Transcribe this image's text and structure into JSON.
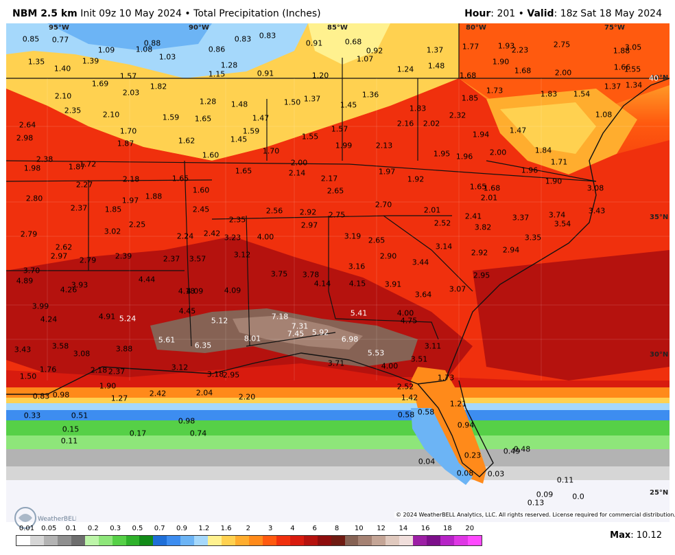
{
  "header": {
    "model": "NBM 2.5 km",
    "init": "Init 09z 10 May 2024",
    "sep": "•",
    "product": "Total Precipitation (Inches)",
    "hour_label": "Hour",
    "hour_value": "201",
    "valid_label": "Valid",
    "valid_value": "18z Sat 18 May 2024"
  },
  "map": {
    "lon_labels": [
      "95°W",
      "90°W",
      "85°W",
      "80°W",
      "75°W"
    ],
    "lat_labels": [
      "40°N",
      "35°N",
      "30°N",
      "25°N"
    ],
    "values": [
      [
        "0.85",
        45,
        57
      ],
      [
        "0.77",
        88,
        58
      ],
      [
        "1.09",
        155,
        73
      ],
      [
        "1.08",
        210,
        72
      ],
      [
        "0.88",
        222,
        63
      ],
      [
        "1.03",
        244,
        83
      ],
      [
        "0.86",
        316,
        72
      ],
      [
        "0.83",
        354,
        57
      ],
      [
        "0.83",
        390,
        52
      ],
      [
        "0.91",
        458,
        63
      ],
      [
        "0.68",
        515,
        61
      ],
      [
        "0.92",
        546,
        74
      ],
      [
        "1.07",
        532,
        86
      ],
      [
        "1.37",
        634,
        73
      ],
      [
        "1.48",
        636,
        96
      ],
      [
        "1.24",
        591,
        101
      ],
      [
        "1.20",
        467,
        110
      ],
      [
        "1.28",
        334,
        95
      ],
      [
        "1.15",
        316,
        108
      ],
      [
        "0.91",
        387,
        107
      ],
      [
        "1.77",
        686,
        68
      ],
      [
        "1.93",
        738,
        67
      ],
      [
        "2.23",
        758,
        73
      ],
      [
        "2.75",
        819,
        65
      ],
      [
        "1.88",
        906,
        74
      ],
      [
        "3.05",
        923,
        69
      ],
      [
        "1.90",
        730,
        90
      ],
      [
        "1.68",
        762,
        103
      ],
      [
        "2.00",
        821,
        106
      ],
      [
        "1.68",
        682,
        110
      ],
      [
        "1.66",
        907,
        98
      ],
      [
        "1.55",
        922,
        101
      ],
      [
        "40",
        953,
        114
      ],
      [
        "1.35",
        53,
        90
      ],
      [
        "1.40",
        91,
        100
      ],
      [
        "1.39",
        132,
        89
      ],
      [
        "1.69",
        146,
        122
      ],
      [
        "1.57",
        187,
        111
      ],
      [
        "2.03",
        191,
        135
      ],
      [
        "1.82",
        231,
        126
      ],
      [
        "1.28",
        303,
        148
      ],
      [
        "1.48",
        349,
        152
      ],
      [
        "1.50",
        426,
        149
      ],
      [
        "1.37",
        455,
        144
      ],
      [
        "1.36",
        540,
        138
      ],
      [
        "1.45",
        508,
        153
      ],
      [
        "1.37",
        893,
        126
      ],
      [
        "1.34",
        924,
        124
      ],
      [
        "1.54",
        848,
        137
      ],
      [
        "1.08",
        880,
        167
      ],
      [
        "1.73",
        721,
        132
      ],
      [
        "1.83",
        800,
        137
      ],
      [
        "1.85",
        685,
        143
      ],
      [
        "2.10",
        92,
        140
      ],
      [
        "2.35",
        106,
        161
      ],
      [
        "2.10",
        162,
        167
      ],
      [
        "1.59",
        249,
        171
      ],
      [
        "1.65",
        296,
        173
      ],
      [
        "1.47",
        380,
        172
      ],
      [
        "1.83",
        609,
        158
      ],
      [
        "2.32",
        667,
        168
      ],
      [
        "2.16",
        591,
        180
      ],
      [
        "2.02",
        629,
        180
      ],
      [
        "1.57",
        495,
        188
      ],
      [
        "1.47",
        755,
        190
      ],
      [
        "1.94",
        701,
        196
      ],
      [
        "2.64",
        40,
        182
      ],
      [
        "2.98",
        36,
        201
      ],
      [
        "1.70",
        187,
        191
      ],
      [
        "1.87",
        183,
        209
      ],
      [
        "1.62",
        272,
        205
      ],
      [
        "1.59",
        366,
        191
      ],
      [
        "1.45",
        348,
        203
      ],
      [
        "1.55",
        452,
        199
      ],
      [
        "1.99",
        501,
        212
      ],
      [
        "2.13",
        560,
        212
      ],
      [
        "1.70",
        395,
        220
      ],
      [
        "1.95",
        644,
        224
      ],
      [
        "1.96",
        677,
        228
      ],
      [
        "2.00",
        726,
        222
      ],
      [
        "1.84",
        792,
        219
      ],
      [
        "2.38",
        65,
        232
      ],
      [
        "1.72",
        128,
        239
      ],
      [
        "1.87",
        112,
        243
      ],
      [
        "1.98",
        47,
        245
      ],
      [
        "1.60",
        307,
        226
      ],
      [
        "1.65",
        355,
        249
      ],
      [
        "2.00",
        436,
        237
      ],
      [
        "2.14",
        433,
        252
      ],
      [
        "2.17",
        480,
        260
      ],
      [
        "1.97",
        564,
        250
      ],
      [
        "1.71",
        815,
        236
      ],
      [
        "1.96",
        772,
        248
      ],
      [
        "2.18",
        191,
        261
      ],
      [
        "1.65",
        263,
        260
      ],
      [
        "1.60",
        293,
        277
      ],
      [
        "2.65",
        489,
        278
      ],
      [
        "1.92",
        606,
        261
      ],
      [
        "1.65",
        697,
        272
      ],
      [
        "1.68",
        717,
        274
      ],
      [
        "2.01",
        713,
        288
      ],
      [
        "1.90",
        807,
        264
      ],
      [
        "3.08",
        868,
        274
      ],
      [
        "2.27",
        123,
        269
      ],
      [
        "1.97",
        190,
        292
      ],
      [
        "1.88",
        224,
        286
      ],
      [
        "2.80",
        50,
        289
      ],
      [
        "2.37",
        115,
        303
      ],
      [
        "1.85",
        165,
        305
      ],
      [
        "2.45",
        293,
        305
      ],
      [
        "2.56",
        400,
        307
      ],
      [
        "2.92",
        449,
        309
      ],
      [
        "2.75",
        491,
        313
      ],
      [
        "2.70",
        559,
        298
      ],
      [
        "2.01",
        630,
        306
      ],
      [
        "3.43",
        870,
        307
      ],
      [
        "2.25",
        200,
        327
      ],
      [
        "2.35",
        346,
        320
      ],
      [
        "2.97",
        451,
        328
      ],
      [
        "2.41",
        690,
        315
      ],
      [
        "2.52",
        645,
        325
      ],
      [
        "3.82",
        704,
        331
      ],
      [
        "3.37",
        759,
        317
      ],
      [
        "3.74",
        812,
        313
      ],
      [
        "3.54",
        820,
        326
      ],
      [
        "2.79",
        42,
        341
      ],
      [
        "3.02",
        164,
        337
      ],
      [
        "2.24",
        270,
        344
      ],
      [
        "2.42",
        309,
        340
      ],
      [
        "3.23",
        339,
        346
      ],
      [
        "4.00",
        387,
        345
      ],
      [
        "3.19",
        514,
        344
      ],
      [
        "2.65",
        549,
        350
      ],
      [
        "3.35",
        777,
        346
      ],
      [
        "2.62",
        93,
        360
      ],
      [
        "2.97",
        86,
        373
      ],
      [
        "2.39",
        180,
        373
      ],
      [
        "3.57",
        288,
        377
      ],
      [
        "2.37",
        250,
        377
      ],
      [
        "3.12",
        353,
        371
      ],
      [
        "3.14",
        647,
        359
      ],
      [
        "2.90",
        566,
        373
      ],
      [
        "3.44",
        613,
        382
      ],
      [
        "2.92",
        699,
        368
      ],
      [
        "2.94",
        745,
        364
      ],
      [
        "2.79",
        128,
        379
      ],
      [
        "3.70",
        46,
        394
      ],
      [
        "3.16",
        520,
        388
      ],
      [
        "4.89",
        36,
        409
      ],
      [
        "3.75",
        407,
        399
      ],
      [
        "3.78",
        453,
        400
      ],
      [
        "4.14",
        470,
        413
      ],
      [
        "4.15",
        521,
        413
      ],
      [
        "3.91",
        573,
        414
      ],
      [
        "2.95",
        702,
        401
      ],
      [
        "4.44",
        214,
        407
      ],
      [
        "3.93",
        116,
        415
      ],
      [
        "4.26",
        100,
        422
      ],
      [
        "4.18",
        272,
        424
      ],
      [
        "4.09",
        284,
        424
      ],
      [
        "4.09",
        339,
        423
      ],
      [
        "3.64",
        617,
        429
      ],
      [
        "3.07",
        667,
        421
      ],
      [
        "3.99",
        59,
        446
      ],
      [
        "4.24",
        71,
        465
      ],
      [
        "4.91",
        156,
        461
      ],
      [
        "5.24",
        186,
        464
      ],
      [
        "4.45",
        273,
        453
      ],
      [
        "5.12",
        320,
        467
      ],
      [
        "7.18",
        408,
        461
      ],
      [
        "5.41",
        523,
        456
      ],
      [
        "4.00",
        591,
        456
      ],
      [
        "4.75",
        596,
        467
      ],
      [
        "7.31",
        437,
        475
      ],
      [
        "7.45",
        431,
        486
      ],
      [
        "5.92",
        467,
        484
      ],
      [
        "6.98",
        510,
        494
      ],
      [
        "5.61",
        243,
        495
      ],
      [
        "8.01",
        368,
        493
      ],
      [
        "6.35",
        296,
        503
      ],
      [
        "3.43",
        33,
        509
      ],
      [
        "3.58",
        88,
        504
      ],
      [
        "3.08",
        119,
        515
      ],
      [
        "3.88",
        181,
        508
      ],
      [
        "5.53",
        548,
        514
      ],
      [
        "3.71",
        490,
        529
      ],
      [
        "3.11",
        631,
        504
      ],
      [
        "3.51",
        611,
        523
      ],
      [
        "4.00",
        568,
        533
      ],
      [
        "3.12",
        262,
        535
      ],
      [
        "3.18",
        314,
        545
      ],
      [
        "2.95",
        337,
        546
      ],
      [
        "1.50",
        41,
        548
      ],
      [
        "1.76",
        70,
        538
      ],
      [
        "2.18",
        144,
        539
      ],
      [
        "2.37",
        170,
        541
      ],
      [
        "1.73",
        650,
        550
      ],
      [
        "1.90",
        157,
        562
      ],
      [
        "2.52",
        591,
        563
      ],
      [
        "1.42",
        597,
        579
      ],
      [
        "0.83",
        60,
        577
      ],
      [
        "0.98",
        89,
        575
      ],
      [
        "1.27",
        174,
        580
      ],
      [
        "2.42",
        230,
        573
      ],
      [
        "2.04",
        298,
        572
      ],
      [
        "2.20",
        360,
        578
      ],
      [
        "1.21",
        668,
        588
      ],
      [
        "0.33",
        47,
        605
      ],
      [
        "0.51",
        116,
        605
      ],
      [
        "0.58",
        592,
        604
      ],
      [
        "0.58",
        621,
        600
      ],
      [
        "0.98",
        272,
        613
      ],
      [
        "0.15",
        103,
        625
      ],
      [
        "0.17",
        201,
        631
      ],
      [
        "0.74",
        289,
        631
      ],
      [
        "0.94",
        679,
        619
      ],
      [
        "0.11",
        101,
        642
      ],
      [
        "0.49",
        746,
        657
      ],
      [
        "0.48",
        761,
        654
      ],
      [
        "0.23",
        689,
        663
      ],
      [
        "0.04",
        622,
        672
      ],
      [
        "0.08",
        678,
        689
      ],
      [
        "0.03",
        723,
        690
      ],
      [
        "0.11",
        824,
        699
      ],
      [
        "0.09",
        794,
        720
      ],
      [
        "0.0",
        843,
        723
      ],
      [
        "0.13",
        781,
        732
      ]
    ],
    "copyright": "© 2024 WeatherBELL Analytics, LLC. All rights reserved. License required for commercial distribution.",
    "logo_text": "WeatherBELL"
  },
  "legend": {
    "ticks": [
      "0.01",
      "0.05",
      "0.1",
      "0.2",
      "0.3",
      "0.5",
      "0.7",
      "0.9",
      "1.2",
      "1.6",
      "2",
      "3",
      "4",
      "6",
      "8",
      "10",
      "12",
      "14",
      "16",
      "18",
      "20"
    ],
    "colors": [
      "#ffffff",
      "#d6d6d6",
      "#b3b3b3",
      "#8f8f8f",
      "#6e6e6e",
      "#bdf5a9",
      "#8ee67a",
      "#56d047",
      "#2fb12b",
      "#128b18",
      "#1f6fd8",
      "#3d8df0",
      "#6cb4f5",
      "#a5d8fb",
      "#fff18f",
      "#ffd150",
      "#ffad2e",
      "#ff8a1a",
      "#ff5a0f",
      "#f0300d",
      "#d81b0e",
      "#b5120e",
      "#8e0d0d",
      "#6f1b12",
      "#866254",
      "#a58273",
      "#c4a596",
      "#e0c9be",
      "#f0dedb",
      "#9c1fa5",
      "#7c0f8a",
      "#b623c6",
      "#de37e4",
      "#ff49ff"
    ],
    "max_label": "Max",
    "max_value": "10.12"
  }
}
